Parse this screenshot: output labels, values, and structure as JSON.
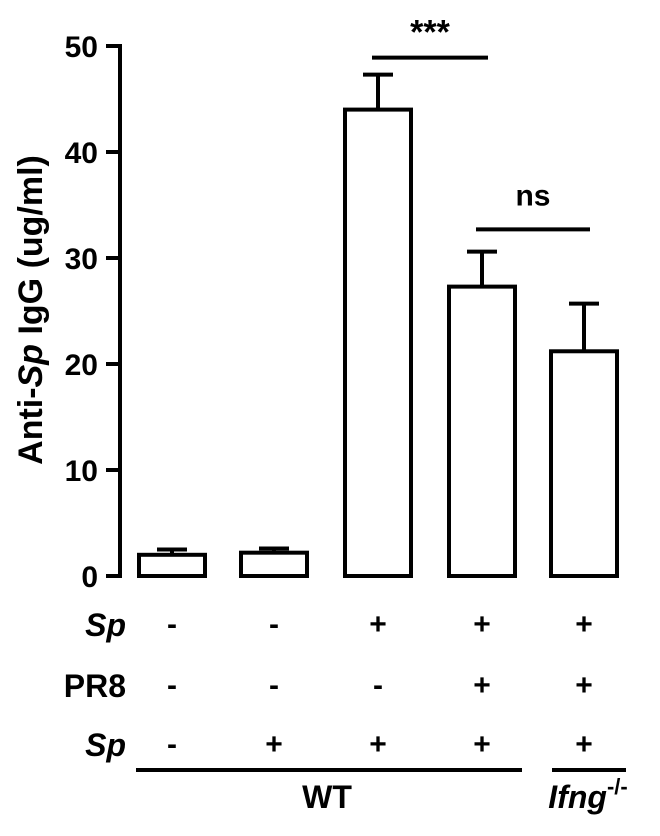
{
  "chart_data": {
    "type": "bar",
    "ylabel_prefix": "Anti-",
    "ylabel_italic": "Sp",
    "ylabel_suffix": " IgG (ug/ml)",
    "ylim": [
      0,
      50
    ],
    "yticks": [
      "0",
      "10",
      "20",
      "30",
      "40",
      "50"
    ],
    "grid": false,
    "legend": "none",
    "values": [
      2.0,
      2.2,
      44.0,
      27.3,
      21.2
    ],
    "errors": [
      0.5,
      0.4,
      3.3,
      3.3,
      4.5
    ],
    "rows": [
      {
        "label": "Sp",
        "italic": true,
        "marks": [
          "-",
          "-",
          "+",
          "+",
          "+"
        ]
      },
      {
        "label": "PR8",
        "italic": false,
        "marks": [
          "-",
          "-",
          "-",
          "+",
          "+"
        ]
      },
      {
        "label": "Sp",
        "italic": true,
        "marks": [
          "-",
          "+",
          "+",
          "+",
          "+"
        ]
      }
    ],
    "groups": [
      {
        "label": "WT",
        "bars": [
          0,
          1,
          2,
          3
        ]
      },
      {
        "label_italic": "Ifng",
        "label_sup": "-/-",
        "bars": [
          4
        ]
      }
    ],
    "significance": [
      {
        "from": 2,
        "to": 3,
        "label": "***",
        "y": 48.9
      },
      {
        "from": 3,
        "to": 4,
        "label": "ns",
        "y": 32.7
      }
    ]
  }
}
